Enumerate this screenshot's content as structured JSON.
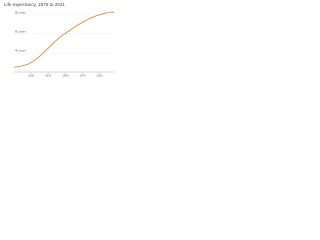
{
  "chart_data": {
    "type": "line",
    "title": "Life expectancy, 1875 to 2021",
    "x": [
      1875,
      1885,
      1895,
      1905,
      1915,
      1925,
      1935,
      1945,
      1955,
      1965,
      1975,
      1985,
      1995,
      2005,
      2010,
      2015,
      2019,
      2021
    ],
    "series": [
      {
        "name": "Life expectancy",
        "color": "#d9822b",
        "values": [
          25,
          26,
          28,
          32,
          38,
          45,
          52,
          58,
          63,
          68,
          72,
          76,
          79,
          81,
          82,
          82.5,
          83,
          82
        ]
      }
    ],
    "xlim": [
      1875,
      2021
    ],
    "xticks": [
      1900,
      1925,
      1950,
      1975,
      2000
    ],
    "ylim": [
      20,
      85
    ],
    "yticks": [
      {
        "value": 40,
        "label": "40 years"
      },
      {
        "value": 60,
        "label": "60 years"
      },
      {
        "value": 80,
        "label": "80 years"
      }
    ],
    "grid": true
  }
}
